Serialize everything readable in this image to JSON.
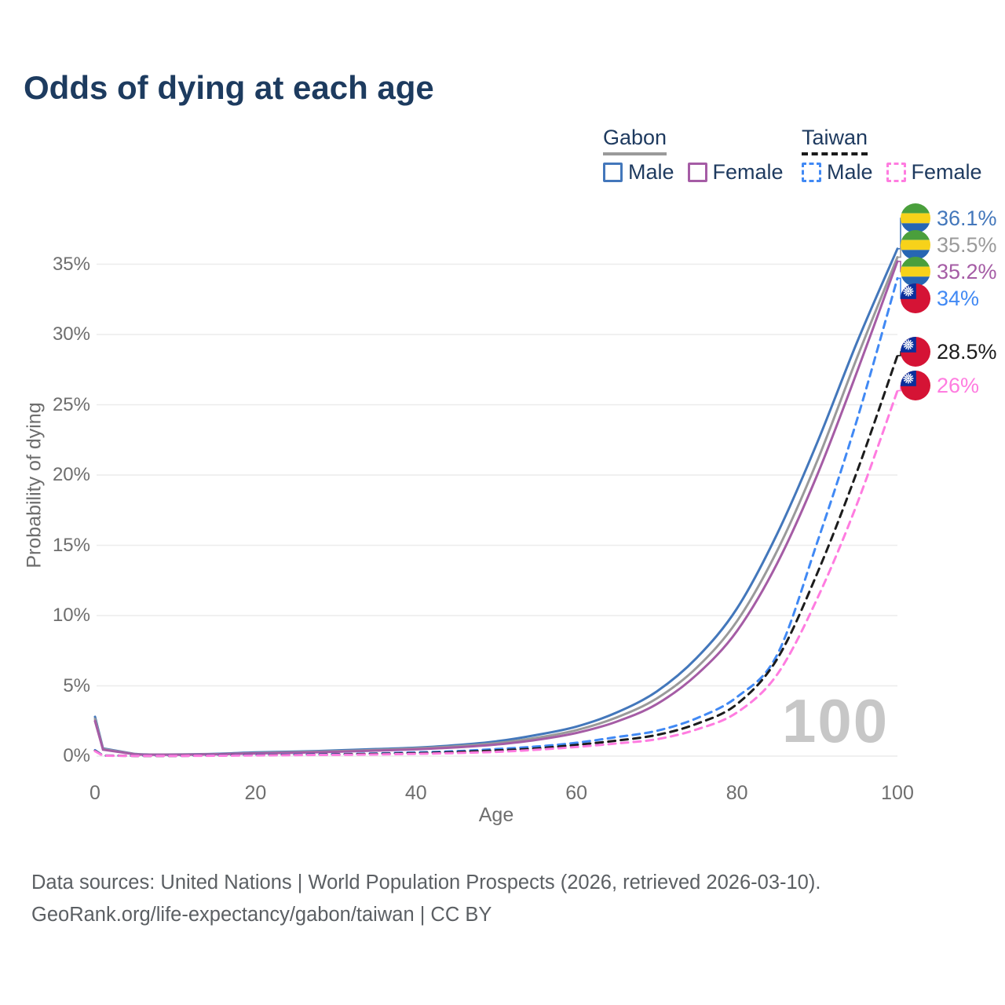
{
  "title": "Odds of dying at each age",
  "watermark": "100",
  "legend": {
    "groups": [
      {
        "name": "Gabon",
        "line_style": "solid",
        "line_color": "#9a9a9a",
        "items": [
          {
            "label": "Male",
            "color": "#4377bb"
          },
          {
            "label": "Female",
            "color": "#a55ca5"
          }
        ]
      },
      {
        "name": "Taiwan",
        "line_style": "dashed",
        "line_color": "#1a1a1a",
        "items": [
          {
            "label": "Male",
            "color": "#4189f4"
          },
          {
            "label": "Female",
            "color": "#ff7ce0"
          }
        ]
      }
    ]
  },
  "chart_data": {
    "type": "line",
    "title": "Odds of dying at each age",
    "xlabel": "Age",
    "ylabel": "Probability of dying",
    "xlim": [
      0,
      100
    ],
    "ylim": [
      0,
      37
    ],
    "grid": "horizontal",
    "legend_position": "top-right",
    "xticks": [
      0,
      20,
      40,
      60,
      80,
      100
    ],
    "yticks": [
      0,
      5,
      10,
      15,
      20,
      25,
      30,
      35
    ],
    "ytick_suffix": "%",
    "x": [
      0,
      1,
      5,
      10,
      15,
      20,
      25,
      30,
      35,
      40,
      45,
      50,
      55,
      60,
      65,
      70,
      75,
      80,
      85,
      90,
      95,
      100
    ],
    "series": [
      {
        "name": "Gabon Male",
        "country": "Gabon",
        "sex": "Male",
        "style": "solid",
        "color": "#4377bb",
        "flag": "gabon",
        "end_label": "36.1%",
        "values": [
          2.8,
          0.55,
          0.15,
          0.12,
          0.16,
          0.26,
          0.32,
          0.4,
          0.5,
          0.6,
          0.78,
          1.05,
          1.5,
          2.1,
          3.1,
          4.6,
          7.0,
          10.5,
          15.8,
          22.3,
          29.5,
          36.1
        ]
      },
      {
        "name": "Gabon Both Sexes",
        "country": "Gabon",
        "sex": "Both",
        "style": "solid",
        "color": "#9a9a9a",
        "flag": "gabon",
        "end_label": "35.5%",
        "values": [
          2.65,
          0.5,
          0.14,
          0.11,
          0.14,
          0.22,
          0.28,
          0.35,
          0.44,
          0.54,
          0.7,
          0.92,
          1.3,
          1.85,
          2.75,
          4.1,
          6.3,
          9.6,
          14.6,
          21.0,
          28.4,
          35.5
        ]
      },
      {
        "name": "Gabon Female",
        "country": "Gabon",
        "sex": "Female",
        "style": "solid",
        "color": "#a55ca5",
        "flag": "gabon",
        "end_label": "35.2%",
        "values": [
          2.5,
          0.46,
          0.13,
          0.1,
          0.13,
          0.19,
          0.24,
          0.31,
          0.39,
          0.48,
          0.62,
          0.82,
          1.15,
          1.65,
          2.45,
          3.7,
          5.8,
          8.9,
          13.7,
          20.0,
          27.4,
          35.2
        ]
      },
      {
        "name": "Taiwan Male",
        "country": "Taiwan",
        "sex": "Male",
        "style": "dashed",
        "color": "#4189f4",
        "flag": "taiwan",
        "end_label": "34%",
        "values": [
          0.42,
          0.04,
          0.02,
          0.02,
          0.05,
          0.09,
          0.11,
          0.14,
          0.19,
          0.26,
          0.35,
          0.5,
          0.68,
          0.95,
          1.35,
          1.8,
          2.7,
          4.2,
          7.2,
          15.2,
          24.0,
          34.0
        ]
      },
      {
        "name": "Taiwan Both Sexes",
        "country": "Taiwan",
        "sex": "Both",
        "style": "dashed",
        "color": "#1c1c1c",
        "flag": "taiwan",
        "end_label": "28.5%",
        "values": [
          0.38,
          0.035,
          0.018,
          0.018,
          0.04,
          0.07,
          0.09,
          0.12,
          0.16,
          0.21,
          0.29,
          0.4,
          0.55,
          0.8,
          1.1,
          1.5,
          2.3,
          3.7,
          6.9,
          13.0,
          20.3,
          28.5
        ]
      },
      {
        "name": "Taiwan Female",
        "country": "Taiwan",
        "sex": "Female",
        "style": "dashed",
        "color": "#ff7ce0",
        "flag": "taiwan",
        "end_label": "26%",
        "values": [
          0.35,
          0.03,
          0.015,
          0.015,
          0.03,
          0.05,
          0.07,
          0.09,
          0.12,
          0.16,
          0.22,
          0.3,
          0.45,
          0.65,
          0.9,
          1.2,
          1.9,
          3.1,
          5.8,
          11.2,
          18.0,
          26.0
        ]
      }
    ]
  },
  "footer": {
    "line1": "Data sources: United Nations | World Population Prospects (2026, retrieved 2026-03-10).",
    "line2": "GeoRank.org/life-expectancy/gabon/taiwan | CC BY"
  }
}
